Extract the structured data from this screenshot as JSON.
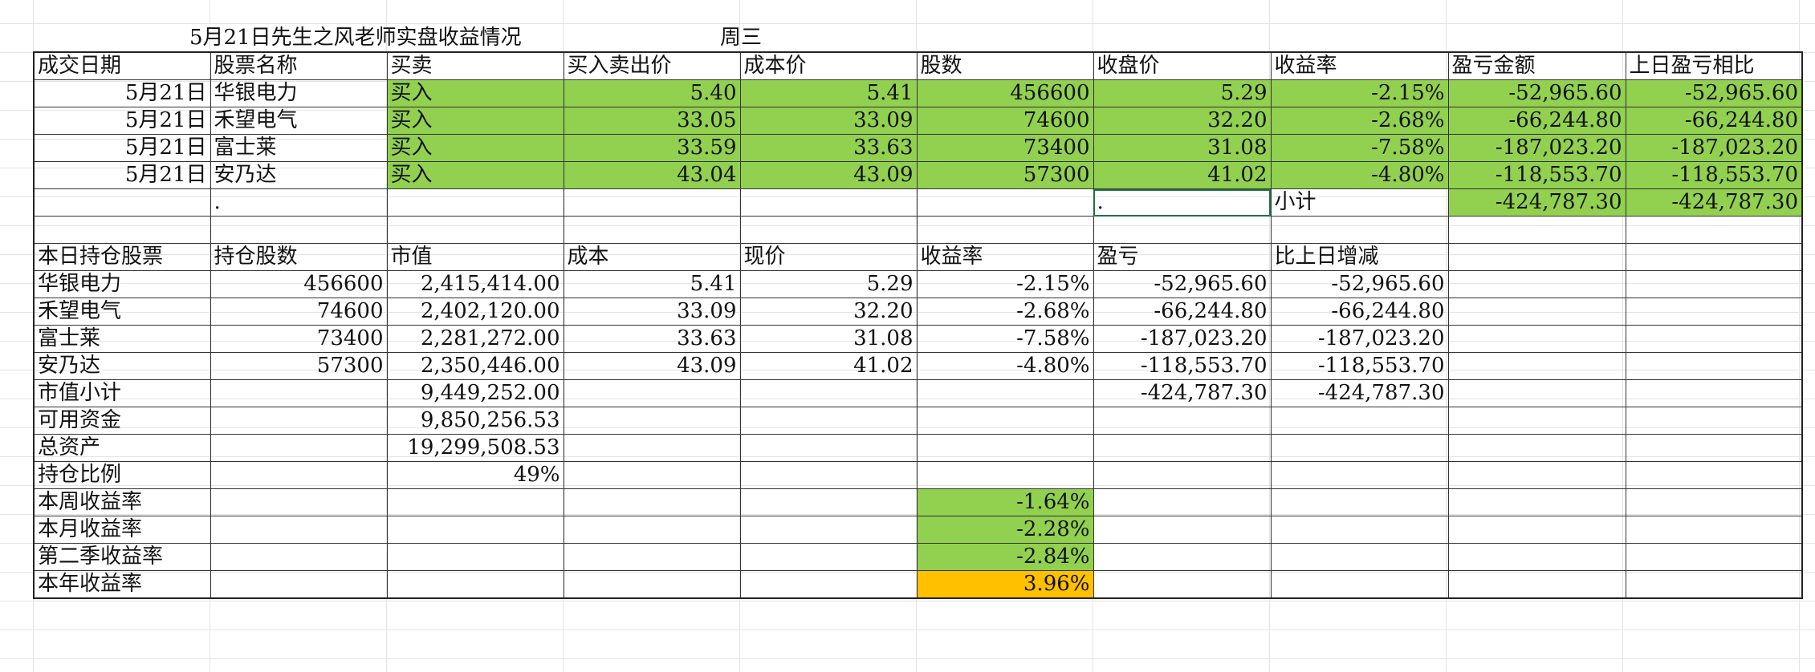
{
  "sheet": {
    "title": "5月21日先生之风老师实盘收益情况",
    "weekday": "周三",
    "colors": {
      "green": "#92d050",
      "orange": "#ffc000"
    }
  },
  "trades": {
    "headers": [
      "成交日期",
      "股票名称",
      "买卖",
      "买入卖出价",
      "成本价",
      "股数",
      "收盘价",
      "收益率",
      "盈亏金额",
      "上日盈亏相比"
    ],
    "rows": [
      [
        "5月21日",
        "华银电力",
        "买入",
        "5.40",
        "5.41",
        "456600",
        "5.29",
        "-2.15%",
        "-52,965.60",
        "-52,965.60"
      ],
      [
        "5月21日",
        "禾望电气",
        "买入",
        "33.05",
        "33.09",
        "74600",
        "32.20",
        "-2.68%",
        "-66,244.80",
        "-66,244.80"
      ],
      [
        "5月21日",
        "富士莱",
        "买入",
        "33.59",
        "33.63",
        "73400",
        "31.08",
        "-7.58%",
        "-187,023.20",
        "-187,023.20"
      ],
      [
        "5月21日",
        "安乃达",
        "买入",
        "43.04",
        "43.09",
        "57300",
        "41.02",
        "-4.80%",
        "-118,553.70",
        "-118,553.70"
      ]
    ],
    "subtotal": {
      "dot_b": ".",
      "dot_g": ".",
      "label": "小计",
      "pnl": "-424,787.30",
      "vs_prev": "-424,787.30"
    }
  },
  "holdings": {
    "headers": [
      "本日持仓股票",
      "持仓股数",
      "市值",
      "成本",
      "现价",
      "收益率",
      "盈亏",
      "比上日增减"
    ],
    "rows": [
      [
        "华银电力",
        "456600",
        "2,415,414.00",
        "5.41",
        "5.29",
        "-2.15%",
        "-52,965.60",
        "-52,965.60"
      ],
      [
        "禾望电气",
        "74600",
        "2,402,120.00",
        "33.09",
        "32.20",
        "-2.68%",
        "-66,244.80",
        "-66,244.80"
      ],
      [
        "富士莱",
        "73400",
        "2,281,272.00",
        "33.63",
        "31.08",
        "-7.58%",
        "-187,023.20",
        "-187,023.20"
      ],
      [
        "安乃达",
        "57300",
        "2,350,446.00",
        "43.09",
        "41.02",
        "-4.80%",
        "-118,553.70",
        "-118,553.70"
      ]
    ],
    "market_value_subtotal": {
      "label": "市值小计",
      "value": "9,449,252.00",
      "pnl": "-424,787.30",
      "vs_prev": "-424,787.30"
    },
    "available_funds": {
      "label": "可用资金",
      "value": "9,850,256.53"
    },
    "total_assets": {
      "label": "总资产",
      "value": "19,299,508.53"
    },
    "position_ratio": {
      "label": "持仓比例",
      "value": "49%"
    }
  },
  "returns": {
    "week": {
      "label": "本周收益率",
      "value": "-1.64%"
    },
    "month": {
      "label": "本月收益率",
      "value": "-2.28%"
    },
    "quarter": {
      "label": "第二季收益率",
      "value": "-2.84%"
    },
    "year": {
      "label": "本年收益率",
      "value": "3.96%"
    }
  }
}
